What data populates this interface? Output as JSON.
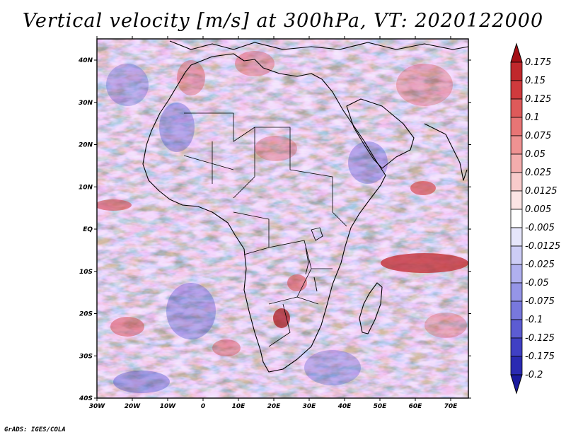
{
  "title": "Vertical velocity [m/s] at 300hPa, VT: 2020122000",
  "footer": "GrADS: IGES/COLA",
  "map": {
    "lon_range": [
      -30,
      75
    ],
    "lat_range": [
      -40,
      45
    ],
    "lat_ticks": [
      "40N",
      "30N",
      "20N",
      "10N",
      "EQ",
      "10S",
      "20S",
      "30S",
      "40S"
    ],
    "lon_ticks": [
      "30W",
      "20W",
      "10W",
      "0",
      "10E",
      "20E",
      "30E",
      "40E",
      "50E",
      "60E",
      "70E"
    ]
  },
  "colorbar": {
    "labels": [
      "0.175",
      "0.15",
      "0.125",
      "0.1",
      "0.075",
      "0.05",
      "0.025",
      "0.0125",
      "0.005",
      "-0.005",
      "-0.0125",
      "-0.025",
      "-0.05",
      "-0.075",
      "-0.1",
      "-0.125",
      "-0.175",
      "-0.2"
    ],
    "colors": [
      "#a50f15",
      "#c0282c",
      "#d03a3d",
      "#de5a5a",
      "#e87575",
      "#ef9292",
      "#f4adad",
      "#f8cbcb",
      "#fbe4e4",
      "#ffffff",
      "#e6e6fb",
      "#cdcdf6",
      "#b0b0ef",
      "#9595e7",
      "#7878dd",
      "#5c5cd2",
      "#4040c4",
      "#2a2ab2",
      "#1a1a9e"
    ]
  }
}
